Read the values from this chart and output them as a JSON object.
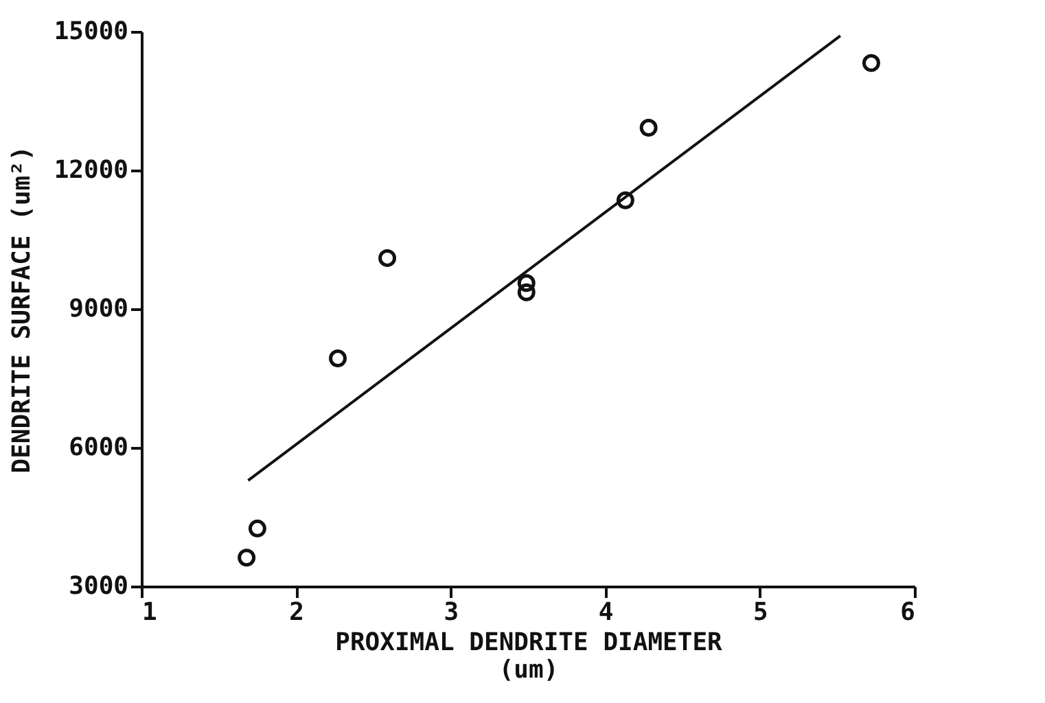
{
  "chart_data": {
    "type": "scatter",
    "xlabel": "PROXIMAL DENDRITE DIAMETER\n(um)",
    "ylabel": "DENDRITE SURFACE (um²)",
    "xlim": [
      1,
      6
    ],
    "xticks": [
      1,
      2,
      3,
      4,
      5,
      6
    ],
    "ylim": [
      3000,
      15000
    ],
    "yticks": [
      3000,
      6000,
      9000,
      12000,
      15000
    ],
    "grid": false,
    "series": [
      {
        "marker": "circle",
        "color": "#111111",
        "x": [
          1.68,
          1.75,
          2.27,
          2.59,
          3.49,
          3.49,
          4.13,
          4.28,
          5.72
        ],
        "values": [
          3620,
          4250,
          7930,
          10100,
          9560,
          9360,
          11350,
          12920,
          14320
        ]
      },
      {
        "type": "line",
        "color": "#111111",
        "x": [
          1.69,
          5.52
        ],
        "values": [
          5290,
          14910
        ]
      }
    ]
  }
}
